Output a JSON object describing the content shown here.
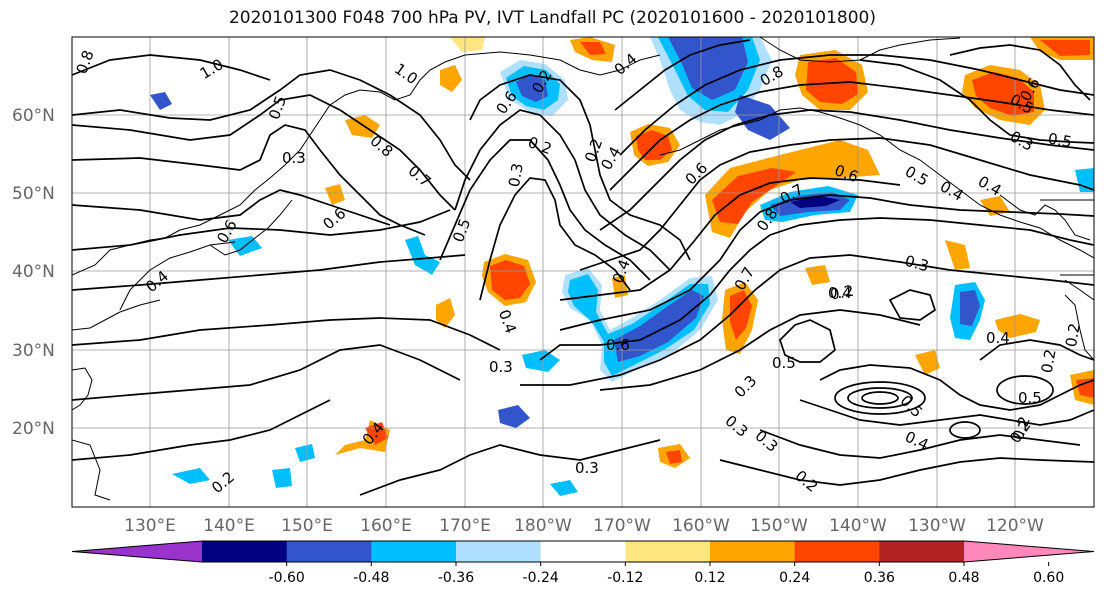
{
  "title": "2020101300 F048 700 hPa PV, IVT Landfall PC (2020101600 - 2020101800)",
  "lat_labels": [
    "60°N",
    "50°N",
    "40°N",
    "30°N",
    "20°N"
  ],
  "lon_labels": [
    "130°E",
    "140°E",
    "150°E",
    "160°E",
    "170°E",
    "180°W",
    "170°W",
    "160°W",
    "150°W",
    "140°W",
    "130°W",
    "120°W"
  ],
  "colorbar": {
    "colors": [
      "#9933cc",
      "#000080",
      "#3355cc",
      "#00bfff",
      "#b0e0ff",
      "#ffffff",
      "#ffe680",
      "#ffa500",
      "#ff4500",
      "#b22222",
      "#ff88bb"
    ],
    "tick_labels": [
      "-0.60",
      "-0.48",
      "-0.36",
      "-0.24",
      "-0.12",
      "0.12",
      "0.24",
      "0.36",
      "0.48",
      "0.60"
    ]
  },
  "contour_labels": [
    "0.8",
    "1.0",
    "1.0",
    "0.5",
    "0.3",
    "0.8",
    "0.7",
    "0.6",
    "0.6",
    "0.4",
    "0.4",
    "0.5",
    "0.4",
    "0.2",
    "0.3",
    "0.6",
    "0.2",
    "0.3",
    "0.4",
    "0.6",
    "0.4",
    "0.2",
    "0.6",
    "0.7",
    "0.8",
    "0.8",
    "0.7",
    "0.6",
    "0.5",
    "0.4",
    "0.4",
    "0.5",
    "0.3",
    "0.3",
    "0.2",
    "0.3",
    "0.5",
    "0.5",
    "0.4",
    "0.3",
    "0.3",
    "0.2",
    "0.2",
    "0.4",
    "0.3",
    "0.2",
    "0.5",
    "0.4",
    "0.6",
    "0.5",
    "0.4",
    "0.2",
    "0.2",
    "0.2"
  ]
}
